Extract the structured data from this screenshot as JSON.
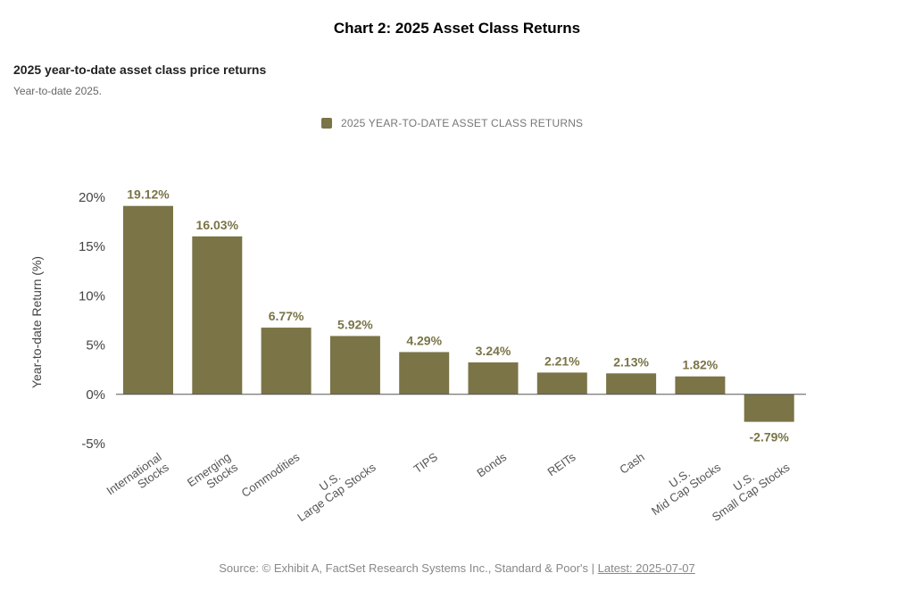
{
  "page": {
    "title": "Chart 2: 2025 Asset Class Returns"
  },
  "chart_header": {
    "title": "2025 year-to-date asset class price returns",
    "subtitle": "Year-to-date 2025."
  },
  "legend": {
    "label": "2025 YEAR-TO-DATE ASSET CLASS RETURNS"
  },
  "source": {
    "text": "Source: © Exhibit A, FactSet Research Systems Inc., Standard & Poor's | ",
    "latest": "Latest: 2025-07-07"
  },
  "colors": {
    "bar": "#7a7447",
    "axis": "#555555"
  },
  "chart_data": {
    "type": "bar",
    "title": "2025 year-to-date asset class price returns",
    "subtitle": "Year-to-date 2025.",
    "ylabel": "Year-to-date Return (%)",
    "xlabel": "",
    "ylim": [
      -5,
      20
    ],
    "yticks": [
      20,
      15,
      10,
      5,
      0,
      -5
    ],
    "ytick_labels": [
      "20%",
      "15%",
      "10%",
      "5%",
      "0%",
      "-5%"
    ],
    "grid": false,
    "legend_position": "top-center",
    "categories": [
      [
        "International",
        "Stocks"
      ],
      [
        "Emerging",
        "Stocks"
      ],
      [
        "Commodities"
      ],
      [
        "U.S.",
        "Large Cap Stocks"
      ],
      [
        "TIPS"
      ],
      [
        "Bonds"
      ],
      [
        "REITs"
      ],
      [
        "Cash"
      ],
      [
        "U.S.",
        "Mid Cap Stocks"
      ],
      [
        "U.S.",
        "Small Cap Stocks"
      ]
    ],
    "series": [
      {
        "name": "2025 YEAR-TO-DATE ASSET CLASS RETURNS",
        "values": [
          19.12,
          16.03,
          6.77,
          5.92,
          4.29,
          3.24,
          2.21,
          2.13,
          1.82,
          -2.79
        ],
        "labels": [
          "19.12%",
          "16.03%",
          "6.77%",
          "5.92%",
          "4.29%",
          "3.24%",
          "2.21%",
          "2.13%",
          "1.82%",
          "-2.79%"
        ]
      }
    ]
  }
}
